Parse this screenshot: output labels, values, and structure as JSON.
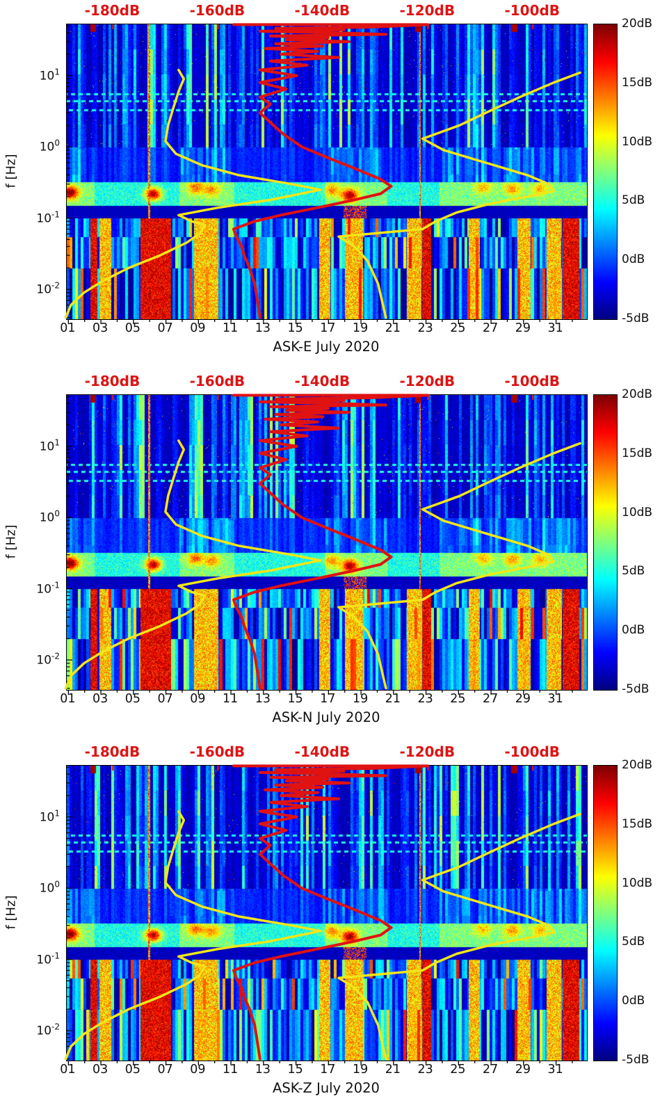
{
  "chart_data": {
    "type": "heatmap",
    "description": "Three stacked spectrogram panels (dynamic power spectra, jet colormap) for magnetometer channels ASK-E, ASK-N, ASK-Z during July 2020, with overlaid yellow and red spectral-level curves referenced to the red top dB axis.",
    "colors": {
      "background": "#ffffff",
      "axis_text": "#111111",
      "top_axis_text": "#dd1414",
      "curve_red": "#e01212",
      "curve_yellow": "#f2e619"
    },
    "panels": [
      {
        "id": "ASK-E",
        "title": "ASK-E July 2020",
        "seed": 7
      },
      {
        "id": "ASK-N",
        "title": "ASK-N July 2020",
        "seed": 13
      },
      {
        "id": "ASK-Z",
        "title": "ASK-Z July 2020",
        "seed": 21
      }
    ],
    "top_axis": {
      "labels": [
        "-180dB",
        "-160dB",
        "-140dB",
        "-120dB",
        "-100dB"
      ],
      "values": [
        -180,
        -160,
        -140,
        -120,
        -100
      ],
      "db_min": -188.8,
      "db_max": -89.7
    },
    "x_axis": {
      "tick_labels": [
        "01",
        "03",
        "05",
        "07",
        "09",
        "11",
        "13",
        "15",
        "17",
        "19",
        "21",
        "23",
        "25",
        "27",
        "29",
        "31"
      ],
      "tick_days": [
        1,
        3,
        5,
        7,
        9,
        11,
        13,
        15,
        17,
        19,
        21,
        23,
        25,
        27,
        29,
        31
      ],
      "day_min": 0.9,
      "day_max": 32.9
    },
    "y_axis": {
      "label": "f [Hz]",
      "logf_top": 1.72,
      "logf_bottom": -2.42,
      "ticks": [
        {
          "base": "10",
          "exp": "1"
        },
        {
          "base": "10",
          "exp": "0"
        },
        {
          "base": "10",
          "exp": "-1"
        },
        {
          "base": "10",
          "exp": "-2"
        }
      ],
      "tick_f": [
        10,
        1,
        0.1,
        0.01
      ]
    },
    "colorbar": {
      "tick_labels": [
        "20dB",
        "15dB",
        "10dB",
        "5dB",
        "0dB",
        "-5dB"
      ],
      "tick_values": [
        20,
        15,
        10,
        5,
        0,
        -5
      ],
      "v_min": -5,
      "v_max": 20
    },
    "curves": {
      "red": {
        "name": "red-spectral-curve",
        "points": [
          [
            52,
            -157
          ],
          [
            52,
            -120
          ],
          [
            48,
            -131
          ],
          [
            46,
            -149
          ],
          [
            44,
            -136
          ],
          [
            42,
            -152
          ],
          [
            40,
            -138
          ],
          [
            38,
            -128
          ],
          [
            36,
            -150
          ],
          [
            34,
            -139
          ],
          [
            32,
            -147
          ],
          [
            30,
            -135
          ],
          [
            28,
            -149
          ],
          [
            26,
            -140
          ],
          [
            24,
            -151
          ],
          [
            22,
            -141
          ],
          [
            20,
            -148
          ],
          [
            18,
            -137
          ],
          [
            16,
            -150
          ],
          [
            14,
            -143
          ],
          [
            12,
            -152
          ],
          [
            10,
            -145
          ],
          [
            8,
            -152
          ],
          [
            6.5,
            -147
          ],
          [
            5,
            -152
          ],
          [
            4,
            -150
          ],
          [
            3,
            -152
          ],
          [
            2.2,
            -150
          ],
          [
            1.5,
            -147.5
          ],
          [
            1,
            -144
          ],
          [
            0.7,
            -139
          ],
          [
            0.5,
            -134
          ],
          [
            0.35,
            -129
          ],
          [
            0.28,
            -127
          ],
          [
            0.22,
            -129
          ],
          [
            0.18,
            -134
          ],
          [
            0.14,
            -141
          ],
          [
            0.11,
            -148
          ],
          [
            0.09,
            -153
          ],
          [
            0.07,
            -157
          ],
          [
            0.055,
            -156.5
          ],
          [
            0.04,
            -155.5
          ],
          [
            0.03,
            -155
          ],
          [
            0.02,
            -154
          ],
          [
            0.012,
            -153
          ],
          [
            0.007,
            -152.5
          ],
          [
            0.004,
            -152
          ]
        ]
      },
      "yellow_left": {
        "name": "yellow-spectral-curve-left",
        "points": [
          [
            0.004,
            -189
          ],
          [
            0.006,
            -188
          ],
          [
            0.009,
            -185.5
          ],
          [
            0.013,
            -182
          ],
          [
            0.02,
            -177
          ],
          [
            0.03,
            -171
          ],
          [
            0.045,
            -166
          ],
          [
            0.06,
            -163.5
          ],
          [
            0.08,
            -162.5
          ],
          [
            0.09,
            -165
          ],
          [
            0.11,
            -167.5
          ],
          [
            0.14,
            -160
          ],
          [
            0.18,
            -150
          ],
          [
            0.25,
            -140.5
          ],
          [
            0.3,
            -146
          ],
          [
            0.4,
            -156
          ],
          [
            0.55,
            -163
          ],
          [
            0.8,
            -168
          ],
          [
            1.2,
            -170
          ],
          [
            2,
            -169.5
          ],
          [
            3.5,
            -168.5
          ],
          [
            6,
            -167.5
          ],
          [
            9,
            -166.5
          ],
          [
            12,
            -167.5
          ]
        ]
      },
      "yellow_right": {
        "name": "yellow-spectral-curve-right",
        "points": [
          [
            11,
            -91
          ],
          [
            8,
            -96
          ],
          [
            5,
            -102.5
          ],
          [
            3,
            -109
          ],
          [
            2,
            -114
          ],
          [
            1.3,
            -121
          ],
          [
            0.9,
            -117
          ],
          [
            0.6,
            -109
          ],
          [
            0.4,
            -101
          ],
          [
            0.3,
            -97
          ],
          [
            0.24,
            -96
          ],
          [
            0.2,
            -101
          ],
          [
            0.16,
            -108
          ],
          [
            0.12,
            -114.5
          ],
          [
            0.09,
            -118.5
          ],
          [
            0.07,
            -121
          ],
          [
            0.055,
            -137
          ],
          [
            0.04,
            -134
          ],
          [
            0.025,
            -131.5
          ],
          [
            0.012,
            -129.5
          ],
          [
            0.004,
            -128
          ]
        ]
      }
    },
    "spectrogram": {
      "value_range_db": [
        -5,
        20
      ],
      "bright_band_f": [
        0.15,
        0.32
      ],
      "low_band_max_f": 0.1,
      "hot_blobs": [
        {
          "day": 1.1,
          "f": 0.23,
          "db": 19
        },
        {
          "day": 6.2,
          "f": 0.22,
          "db": 20
        },
        {
          "day": 18.3,
          "f": 0.21,
          "db": 18
        },
        {
          "day": 8.8,
          "f": 0.27,
          "db": 13
        },
        {
          "day": 9.8,
          "f": 0.25,
          "db": 12
        },
        {
          "day": 17.2,
          "f": 0.25,
          "db": 12
        },
        {
          "day": 28.3,
          "f": 0.26,
          "db": 12
        },
        {
          "day": 26.5,
          "f": 0.27,
          "db": 11
        },
        {
          "day": 30.0,
          "f": 0.26,
          "db": 11
        }
      ],
      "red_column_days": [
        [
          2.35,
          2.75
        ],
        [
          5.4,
          7.3
        ],
        [
          22.75,
          23.3
        ],
        [
          31.4,
          32.4
        ]
      ],
      "warm_column_days": [
        [
          2.9,
          3.6
        ],
        [
          8.7,
          10.2
        ],
        [
          16.4,
          17.1
        ],
        [
          18.0,
          19.1
        ],
        [
          21.8,
          22.7
        ],
        [
          25.6,
          26.3
        ],
        [
          28.6,
          29.4
        ],
        [
          30.4,
          31.3
        ]
      ],
      "cyan_patch_days": [
        [
          0.9,
          2.6
        ],
        [
          7.8,
          11.2
        ],
        [
          16.8,
          20.6
        ],
        [
          23.8,
          32.9
        ]
      ],
      "bright_line_days": [
        5.95,
        22.62
      ],
      "top_mark_days": [
        2.5,
        22.5,
        28.4
      ],
      "dashed_line_f": [
        3.3,
        4.4,
        5.5
      ]
    }
  }
}
